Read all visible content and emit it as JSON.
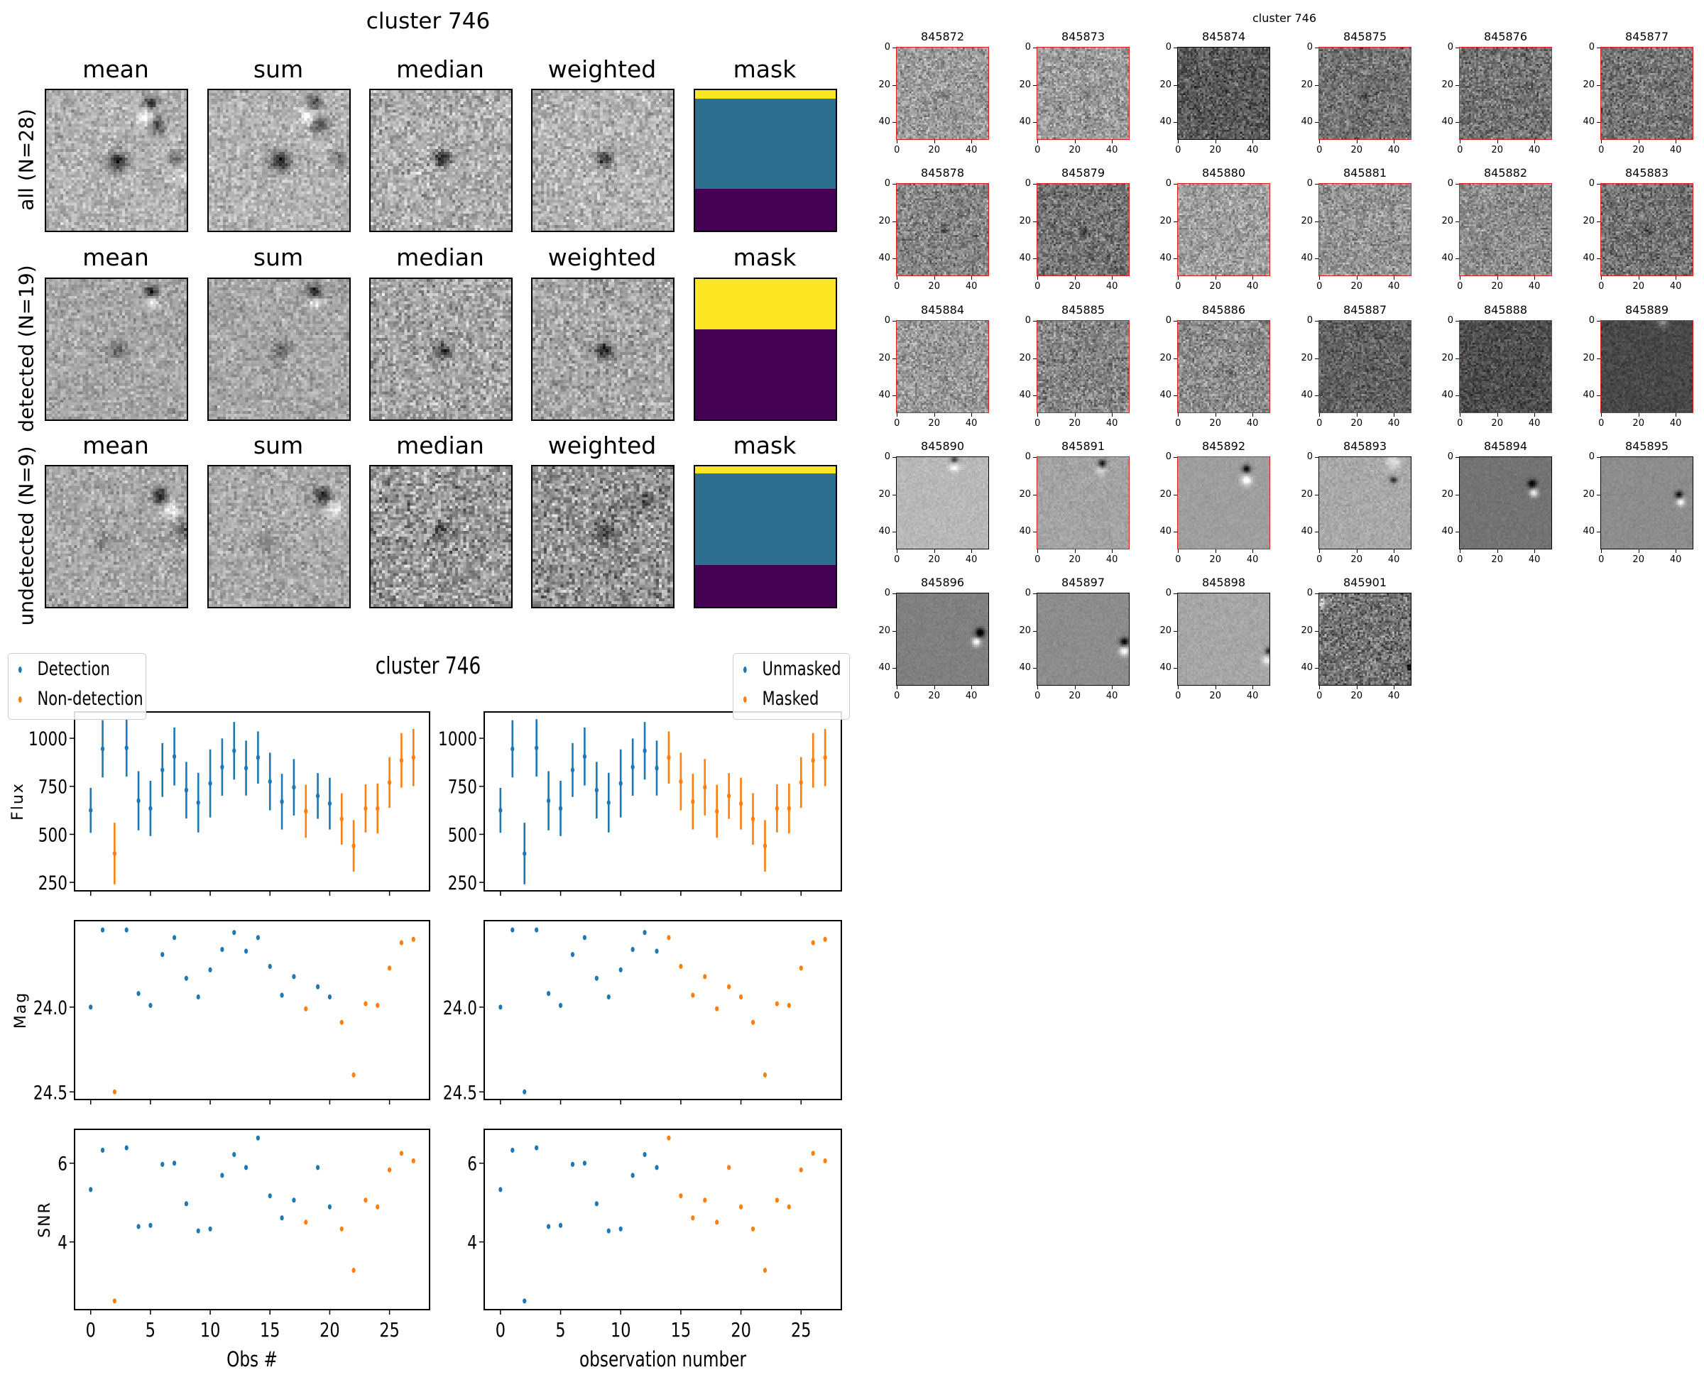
{
  "left_figure": {
    "title": "cluster 746",
    "columns": [
      "mean",
      "sum",
      "median",
      "weighted",
      "mask"
    ],
    "rows": [
      {
        "label": "all (N=28)",
        "mask_bands": [
          {
            "color": "#fde725",
            "fraction": 0.06
          },
          {
            "color": "#2c6f8e",
            "fraction": 0.64
          },
          {
            "color": "#440154",
            "fraction": 0.3
          }
        ]
      },
      {
        "label": "detected (N=19)",
        "mask_bands": [
          {
            "color": "#fde725",
            "fraction": 0.36
          },
          {
            "color": "#440154",
            "fraction": 0.64
          }
        ]
      },
      {
        "label": "undetected (N=9)",
        "mask_bands": [
          {
            "color": "#fde725",
            "fraction": 0.05
          },
          {
            "color": "#2c6f8e",
            "fraction": 0.65
          },
          {
            "color": "#440154",
            "fraction": 0.3
          }
        ]
      }
    ]
  },
  "right_figure": {
    "title": "cluster 746",
    "tick_labels": [
      "0",
      "20",
      "40"
    ],
    "thumbnails": [
      {
        "id": "845872",
        "detected": true
      },
      {
        "id": "845873",
        "detected": true
      },
      {
        "id": "845874",
        "detected": false
      },
      {
        "id": "845875",
        "detected": true
      },
      {
        "id": "845876",
        "detected": true
      },
      {
        "id": "845877",
        "detected": true
      },
      {
        "id": "845878",
        "detected": true
      },
      {
        "id": "845879",
        "detected": true
      },
      {
        "id": "845880",
        "detected": true
      },
      {
        "id": "845881",
        "detected": true
      },
      {
        "id": "845882",
        "detected": true
      },
      {
        "id": "845883",
        "detected": true
      },
      {
        "id": "845884",
        "detected": true
      },
      {
        "id": "845885",
        "detected": true
      },
      {
        "id": "845886",
        "detected": true
      },
      {
        "id": "845887",
        "detected": true
      },
      {
        "id": "845888",
        "detected": true
      },
      {
        "id": "845889",
        "detected": true
      },
      {
        "id": "845890",
        "detected": false
      },
      {
        "id": "845891",
        "detected": true
      },
      {
        "id": "845892",
        "detected": true
      },
      {
        "id": "845893",
        "detected": false
      },
      {
        "id": "845894",
        "detected": false
      },
      {
        "id": "845895",
        "detected": false
      },
      {
        "id": "845896",
        "detected": false
      },
      {
        "id": "845897",
        "detected": false
      },
      {
        "id": "845898",
        "detected": false
      },
      {
        "id": "845901",
        "detected": false
      }
    ]
  },
  "colors": {
    "blue": "#1f77b4",
    "orange": "#ff7f0e",
    "detected_border": "#e41a1c"
  },
  "chart_data": {
    "type": "scatter",
    "title": "cluster 746",
    "x": [
      0,
      1,
      2,
      3,
      4,
      5,
      6,
      7,
      8,
      9,
      10,
      11,
      12,
      13,
      14,
      15,
      16,
      17,
      18,
      19,
      20,
      21,
      22,
      23,
      24,
      25,
      26,
      27
    ],
    "xlim": [
      -1.35,
      28.35
    ],
    "xticks": [
      0,
      5,
      10,
      15,
      20,
      25
    ],
    "xlabels": [
      "Obs #",
      "observation number"
    ],
    "flux": [
      625,
      945,
      400,
      950,
      675,
      635,
      835,
      905,
      730,
      665,
      765,
      850,
      935,
      845,
      900,
      775,
      670,
      745,
      620,
      700,
      660,
      580,
      440,
      635,
      635,
      770,
      885,
      900
    ],
    "flux_err": [
      117,
      149,
      160,
      149,
      154,
      144,
      140,
      151,
      147,
      155,
      177,
      149,
      150,
      143,
      136,
      150,
      145,
      147,
      138,
      119,
      135,
      134,
      134,
      125,
      130,
      132,
      142,
      149
    ],
    "mag": [
      24.0,
      23.545,
      24.5,
      23.545,
      23.92,
      23.99,
      23.69,
      23.59,
      23.83,
      23.94,
      23.78,
      23.66,
      23.56,
      23.67,
      23.59,
      23.76,
      23.93,
      23.82,
      24.01,
      23.88,
      23.94,
      24.09,
      24.4,
      23.98,
      23.99,
      23.77,
      23.62,
      23.6
    ],
    "snr": [
      5.33,
      6.33,
      2.5,
      6.39,
      4.39,
      4.42,
      5.97,
      6.0,
      4.97,
      4.28,
      4.33,
      5.69,
      6.22,
      5.89,
      6.64,
      5.17,
      4.61,
      5.06,
      4.5,
      5.89,
      4.89,
      4.33,
      3.28,
      5.06,
      4.89,
      5.83,
      6.25,
      6.06
    ],
    "detected": [
      1,
      1,
      0,
      1,
      1,
      1,
      1,
      1,
      1,
      1,
      1,
      1,
      1,
      1,
      1,
      1,
      1,
      1,
      0,
      1,
      1,
      0,
      0,
      0,
      0,
      0,
      0,
      0
    ],
    "masked": [
      0,
      0,
      0,
      0,
      0,
      0,
      0,
      0,
      0,
      0,
      0,
      0,
      0,
      0,
      1,
      1,
      1,
      1,
      1,
      1,
      1,
      1,
      1,
      1,
      1,
      1,
      1,
      1
    ],
    "panels": [
      {
        "key": "flux",
        "ylabel": "Flux",
        "ylim": [
          206,
          1137
        ],
        "yticks": [
          250,
          500,
          750,
          1000
        ],
        "ytick_labels": [
          "250",
          "500",
          "750",
          "1000"
        ],
        "errorbars": true,
        "inverted": false
      },
      {
        "key": "mag",
        "ylabel": "Mag",
        "ylim": [
          23.49,
          24.545
        ],
        "yticks": [
          24.0,
          24.5
        ],
        "ytick_labels": [
          "24.0",
          "24.5"
        ],
        "errorbars": false,
        "inverted": true
      },
      {
        "key": "snr",
        "ylabel": "SNR",
        "ylim": [
          2.28,
          6.86
        ],
        "yticks": [
          4,
          6
        ],
        "ytick_labels": [
          "4",
          "6"
        ],
        "errorbars": false,
        "inverted": false
      }
    ],
    "legends": [
      {
        "location": "upper-left",
        "entries": [
          "Detection",
          "Non-detection"
        ],
        "color_by": "detected"
      },
      {
        "location": "upper-right",
        "entries": [
          "Unmasked",
          "Masked"
        ],
        "color_by": "masked"
      }
    ]
  }
}
